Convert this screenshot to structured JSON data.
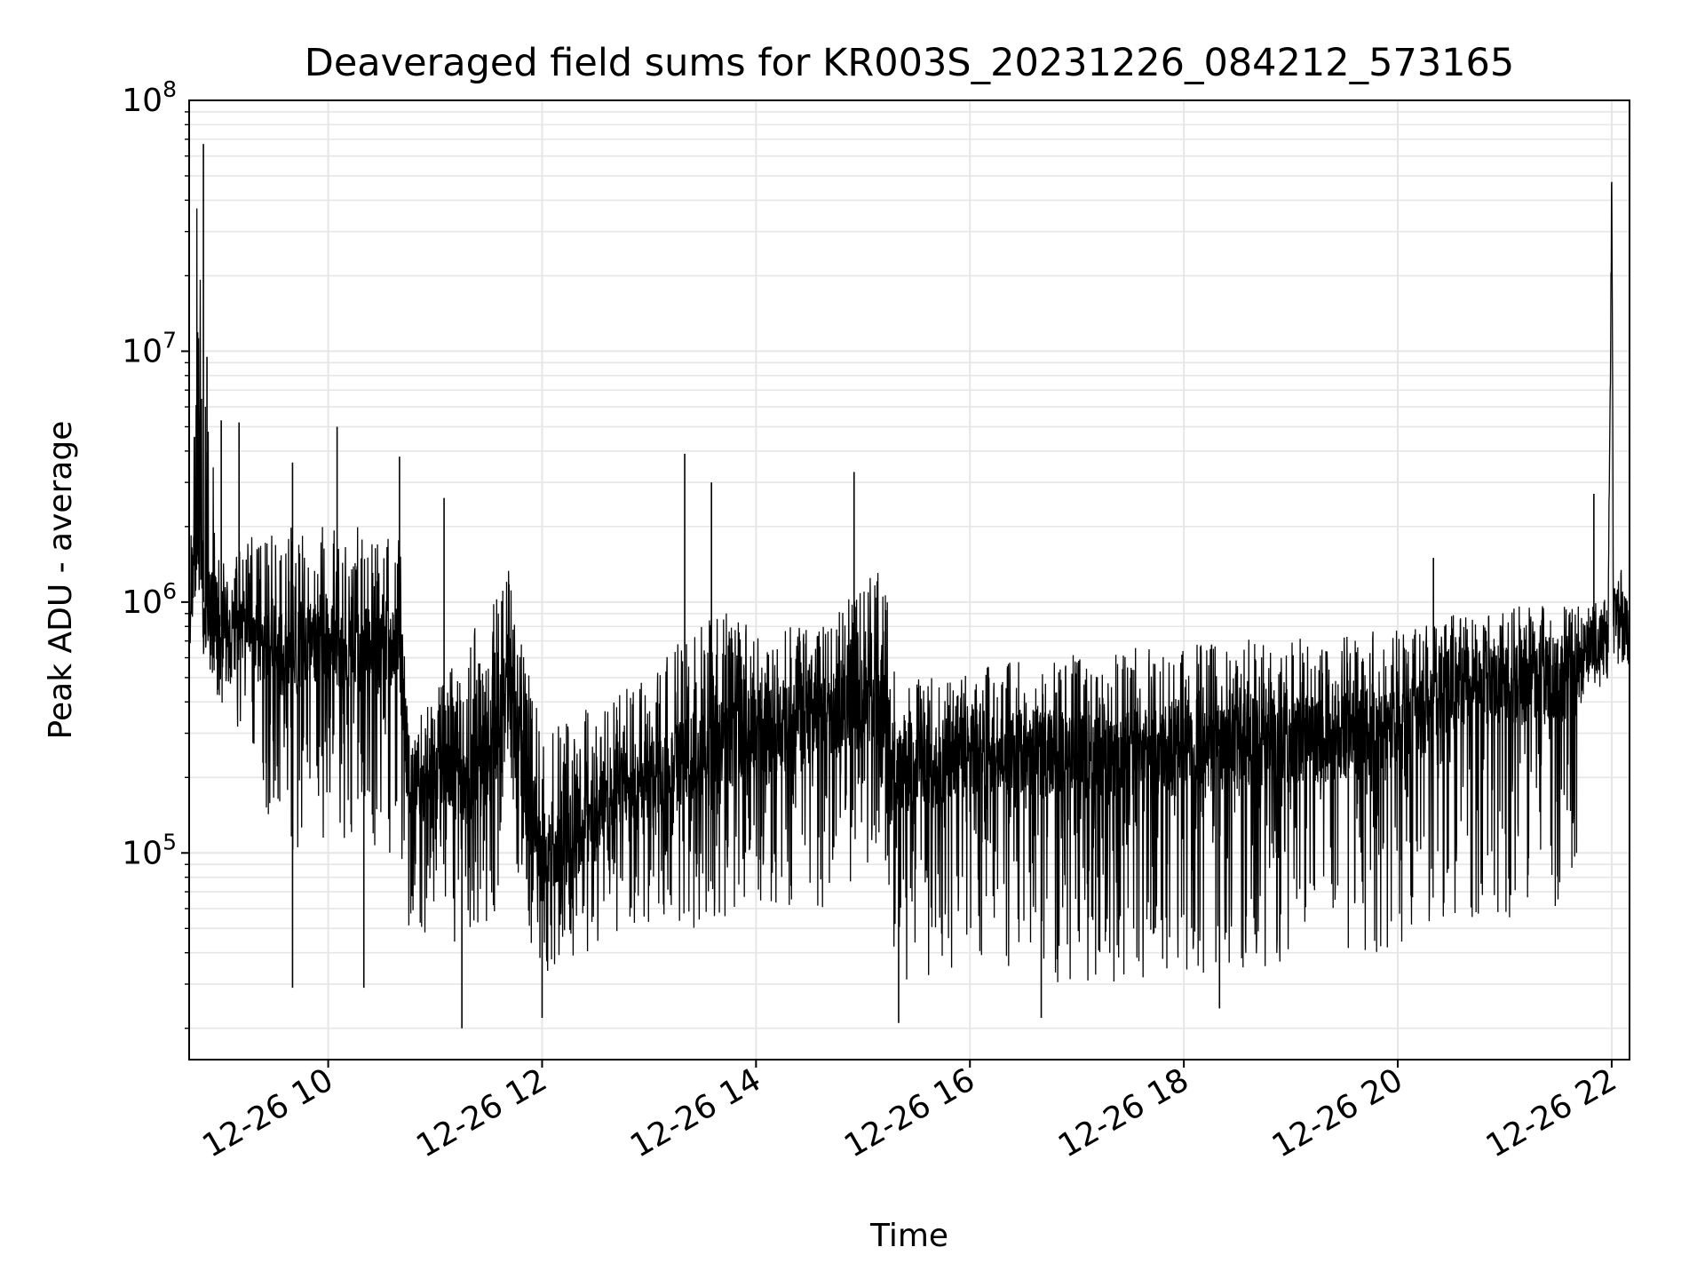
{
  "chart_data": {
    "type": "line",
    "title": "Deaveraged field sums for KR003S_20231226_084212_573165",
    "xlabel": "Time",
    "ylabel": "Peak ADU - average",
    "y_scale": "log",
    "ylim": [
      15000,
      100000000
    ],
    "y_ticks": [
      {
        "value": 100000,
        "base": "10",
        "exp": "5"
      },
      {
        "value": 1000000,
        "base": "10",
        "exp": "6"
      },
      {
        "value": 10000000,
        "base": "10",
        "exp": "7"
      },
      {
        "value": 100000000,
        "base": "10",
        "exp": "8"
      }
    ],
    "xlim": [
      "2023-12-26 08:42",
      "2023-12-26 22:10"
    ],
    "x_ticks": [
      {
        "value": "2023-12-26 10:00",
        "label": "12-26 10"
      },
      {
        "value": "2023-12-26 12:00",
        "label": "12-26 12"
      },
      {
        "value": "2023-12-26 14:00",
        "label": "12-26 14"
      },
      {
        "value": "2023-12-26 16:00",
        "label": "12-26 16"
      },
      {
        "value": "2023-12-26 18:00",
        "label": "12-26 18"
      },
      {
        "value": "2023-12-26 20:00",
        "label": "12-26 20"
      },
      {
        "value": "2023-12-26 22:00",
        "label": "12-26 22"
      }
    ],
    "grid": true,
    "line_color": "#000000",
    "envelope": [
      {
        "t": "2023-12-26 08:42",
        "base": 900000,
        "low": 800000,
        "high": 2800000
      },
      {
        "t": "2023-12-26 08:47",
        "base": 2000000,
        "low": 800000,
        "high": 60000000
      },
      {
        "t": "2023-12-26 08:50",
        "base": 1000000,
        "low": 500000,
        "high": 9000000
      },
      {
        "t": "2023-12-26 09:00",
        "base": 800000,
        "low": 400000,
        "high": 1600000
      },
      {
        "t": "2023-12-26 09:30",
        "base": 600000,
        "low": 100000,
        "high": 2000000
      },
      {
        "t": "2023-12-26 10:00",
        "base": 700000,
        "low": 100000,
        "high": 2000000
      },
      {
        "t": "2023-12-26 10:40",
        "base": 600000,
        "low": 100000,
        "high": 2000000
      },
      {
        "t": "2023-12-26 10:45",
        "base": 200000,
        "low": 50000,
        "high": 300000
      },
      {
        "t": "2023-12-26 11:30",
        "base": 200000,
        "low": 40000,
        "high": 1000000
      },
      {
        "t": "2023-12-26 11:40",
        "base": 500000,
        "low": 100000,
        "high": 1500000
      },
      {
        "t": "2023-12-26 12:00",
        "base": 80000,
        "low": 30000,
        "high": 300000
      },
      {
        "t": "2023-12-26 12:30",
        "base": 150000,
        "low": 40000,
        "high": 400000
      },
      {
        "t": "2023-12-26 13:00",
        "base": 200000,
        "low": 50000,
        "high": 500000
      },
      {
        "t": "2023-12-26 13:30",
        "base": 250000,
        "low": 50000,
        "high": 1000000
      },
      {
        "t": "2023-12-26 14:00",
        "base": 300000,
        "low": 60000,
        "high": 800000
      },
      {
        "t": "2023-12-26 14:40",
        "base": 350000,
        "low": 60000,
        "high": 800000
      },
      {
        "t": "2023-12-26 15:10",
        "base": 400000,
        "low": 100000,
        "high": 1500000
      },
      {
        "t": "2023-12-26 15:20",
        "base": 200000,
        "low": 30000,
        "high": 500000
      },
      {
        "t": "2023-12-26 16:00",
        "base": 250000,
        "low": 30000,
        "high": 550000
      },
      {
        "t": "2023-12-26 17:00",
        "base": 250000,
        "low": 30000,
        "high": 620000
      },
      {
        "t": "2023-12-26 18:00",
        "base": 250000,
        "low": 30000,
        "high": 700000
      },
      {
        "t": "2023-12-26 19:00",
        "base": 280000,
        "low": 35000,
        "high": 730000
      },
      {
        "t": "2023-12-26 20:00",
        "base": 300000,
        "low": 40000,
        "high": 780000
      },
      {
        "t": "2023-12-26 20:30",
        "base": 450000,
        "low": 50000,
        "high": 950000
      },
      {
        "t": "2023-12-26 21:40",
        "base": 500000,
        "low": 50000,
        "high": 1000000
      },
      {
        "t": "2023-12-26 21:45",
        "base": 650000,
        "low": 500000,
        "high": 900000
      },
      {
        "t": "2023-12-26 21:58",
        "base": 700000,
        "low": 500000,
        "high": 900000
      },
      {
        "t": "2023-12-26 22:00",
        "base": 50000000,
        "low": 40000000,
        "high": 60000000
      },
      {
        "t": "2023-12-26 22:01",
        "base": 1000000,
        "low": 500000,
        "high": 1200000
      },
      {
        "t": "2023-12-26 22:10",
        "base": 800000,
        "low": 600000,
        "high": 1000000
      }
    ],
    "spikes": [
      {
        "t": "2023-12-26 08:50",
        "y": 67000000
      },
      {
        "t": "2023-12-26 08:52",
        "y": 9500000
      },
      {
        "t": "2023-12-26 09:00",
        "y": 5300000
      },
      {
        "t": "2023-12-26 09:10",
        "y": 5200000
      },
      {
        "t": "2023-12-26 09:40",
        "y": 3600000
      },
      {
        "t": "2023-12-26 10:05",
        "y": 5000000
      },
      {
        "t": "2023-12-26 10:40",
        "y": 3800000
      },
      {
        "t": "2023-12-26 11:05",
        "y": 2600000
      },
      {
        "t": "2023-12-26 13:20",
        "y": 3900000
      },
      {
        "t": "2023-12-26 13:35",
        "y": 3000000
      },
      {
        "t": "2023-12-26 14:55",
        "y": 3300000
      },
      {
        "t": "2023-12-26 20:20",
        "y": 1500000
      },
      {
        "t": "2023-12-26 21:50",
        "y": 2700000
      },
      {
        "t": "2023-12-26 09:40",
        "y": 29000
      },
      {
        "t": "2023-12-26 10:20",
        "y": 29000
      },
      {
        "t": "2023-12-26 11:15",
        "y": 20000
      },
      {
        "t": "2023-12-26 12:00",
        "y": 22000
      },
      {
        "t": "2023-12-26 15:20",
        "y": 21000
      },
      {
        "t": "2023-12-26 16:40",
        "y": 22000
      },
      {
        "t": "2023-12-26 18:20",
        "y": 24000
      }
    ]
  }
}
